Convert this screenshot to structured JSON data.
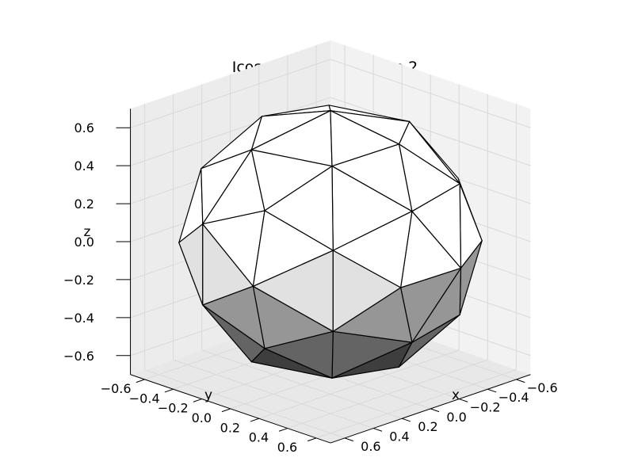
{
  "chart_data": {
    "type": "surface3d",
    "title": "Icosahedron, recursion 2",
    "xlabel": "x",
    "ylabel": "y",
    "zlabel": "z",
    "xlim": [
      -0.7,
      0.7
    ],
    "ylim": [
      -0.7,
      0.7
    ],
    "zlim": [
      -0.7,
      0.7
    ],
    "x_ticks": [
      "−0.6",
      "−0.4",
      "−0.2",
      "0.0",
      "0.2",
      "0.4",
      "0.6"
    ],
    "y_ticks": [
      "−0.6",
      "−0.4",
      "−0.2",
      "0.0",
      "0.2",
      "0.4",
      "0.6"
    ],
    "z_ticks": [
      "−0.6",
      "−0.4",
      "−0.2",
      "0.0",
      "0.2",
      "0.4",
      "0.6"
    ],
    "x_tick_values": [
      -0.6,
      -0.4,
      -0.2,
      0.0,
      0.2,
      0.4,
      0.6
    ],
    "y_tick_values": [
      -0.6,
      -0.4,
      -0.2,
      0.0,
      0.2,
      0.4,
      0.6
    ],
    "z_tick_values": [
      -0.6,
      -0.4,
      -0.2,
      0.0,
      0.2,
      0.4,
      0.6
    ],
    "grid": true,
    "shading": "grayscale",
    "geometry": "icosphere",
    "subdivisions": 1,
    "radius": 0.75
  }
}
